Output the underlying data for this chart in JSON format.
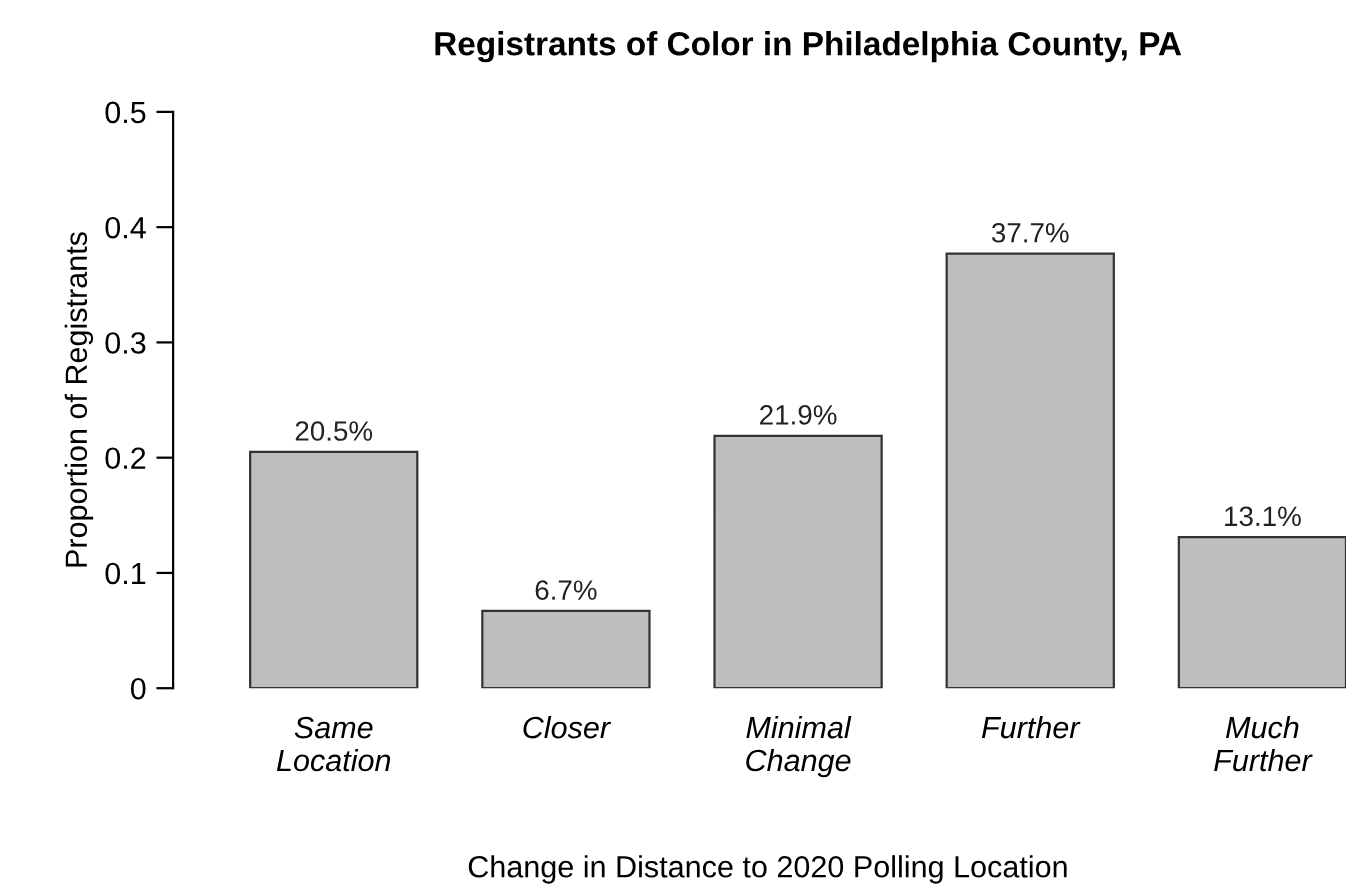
{
  "chart_data": {
    "type": "bar",
    "title": "Registrants of Color in Philadelphia County, PA",
    "xlabel": "Change in Distance to 2020 Polling Location",
    "ylabel": "Proportion of Registrants",
    "categories": [
      "Same\nLocation",
      "Closer",
      "Minimal\nChange",
      "Further",
      "Much\nFurther"
    ],
    "values": [
      0.205,
      0.067,
      0.219,
      0.377,
      0.131
    ],
    "value_labels": [
      "20.5%",
      "6.7%",
      "21.9%",
      "37.7%",
      "13.1%"
    ],
    "color": "#bebebe",
    "ylim": [
      0,
      0.5
    ],
    "yticks": [
      0,
      0.1,
      0.2,
      0.3,
      0.4,
      0.5
    ],
    "grid": false,
    "legend": false
  }
}
